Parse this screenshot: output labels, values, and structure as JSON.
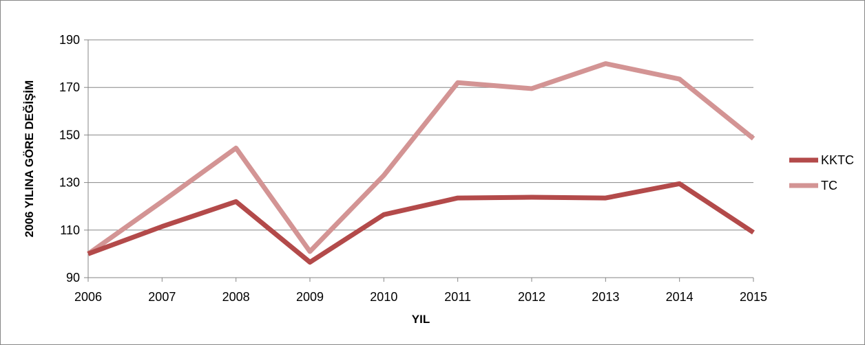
{
  "chart_data": {
    "type": "line",
    "title": "",
    "xlabel": "YIL",
    "ylabel": "2006 YILINA GÖRE DEĞİŞİM",
    "x": [
      "2006",
      "2007",
      "2008",
      "2009",
      "2010",
      "2011",
      "2012",
      "2013",
      "2014",
      "2015"
    ],
    "ylim": [
      90,
      190
    ],
    "yticks": [
      90,
      110,
      130,
      150,
      170,
      190
    ],
    "grid": true,
    "legend_position": "right",
    "series": [
      {
        "name": "KKTC",
        "color": "#B34A4A",
        "values": [
          100,
          111.5,
          122,
          96.5,
          116.5,
          123.5,
          123.8,
          123.5,
          129.5,
          109
        ]
      },
      {
        "name": "TC",
        "color": "#D39494",
        "values": [
          100,
          122,
          144.5,
          101,
          133,
          172,
          169.5,
          180,
          173.5,
          148.5
        ]
      }
    ]
  }
}
